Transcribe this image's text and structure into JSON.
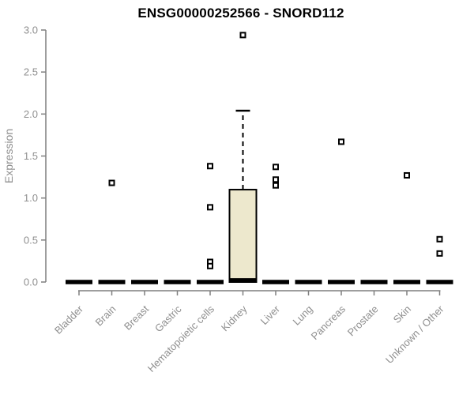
{
  "chart_data": {
    "type": "boxplot",
    "title": "ENSG00000252566 - SNORD112",
    "xlabel": "",
    "ylabel": "Expression",
    "ylim": [
      0.0,
      3.0
    ],
    "yticks": [
      "0.0",
      "0.5",
      "1.0",
      "1.5",
      "2.0",
      "2.5",
      "3.0"
    ],
    "grid": false,
    "legend": false,
    "x_tick_label_rotation_deg": 45,
    "categories": [
      "Bladder",
      "Brain",
      "Breast",
      "Gastric",
      "Hematopoietic cells",
      "Kidney",
      "Liver",
      "Lung",
      "Pancreas",
      "Prostate",
      "Skin",
      "Unknown / Other"
    ],
    "boxes": [
      {
        "category": "Bladder",
        "median": 0,
        "q1": null,
        "q3": null,
        "whisker_low": null,
        "whisker_high": null,
        "outliers": []
      },
      {
        "category": "Brain",
        "median": 0,
        "q1": null,
        "q3": null,
        "whisker_low": null,
        "whisker_high": null,
        "outliers": [
          1.18
        ]
      },
      {
        "category": "Breast",
        "median": 0,
        "q1": null,
        "q3": null,
        "whisker_low": null,
        "whisker_high": null,
        "outliers": []
      },
      {
        "category": "Gastric",
        "median": 0,
        "q1": null,
        "q3": null,
        "whisker_low": null,
        "whisker_high": null,
        "outliers": []
      },
      {
        "category": "Hematopoietic cells",
        "median": 0,
        "q1": null,
        "q3": null,
        "whisker_low": null,
        "whisker_high": null,
        "outliers": [
          1.38,
          0.89,
          0.24,
          0.19
        ]
      },
      {
        "category": "Kidney",
        "median": 0.02,
        "q1": 0,
        "q3": 1.1,
        "whisker_low": null,
        "whisker_high": 2.04,
        "outliers": [
          2.94
        ]
      },
      {
        "category": "Liver",
        "median": 0,
        "q1": null,
        "q3": null,
        "whisker_low": null,
        "whisker_high": null,
        "outliers": [
          1.37,
          1.22,
          1.15
        ]
      },
      {
        "category": "Lung",
        "median": 0,
        "q1": null,
        "q3": null,
        "whisker_low": null,
        "whisker_high": null,
        "outliers": []
      },
      {
        "category": "Pancreas",
        "median": 0,
        "q1": null,
        "q3": null,
        "whisker_low": null,
        "whisker_high": null,
        "outliers": [
          1.67
        ]
      },
      {
        "category": "Prostate",
        "median": 0,
        "q1": null,
        "q3": null,
        "whisker_low": null,
        "whisker_high": null,
        "outliers": []
      },
      {
        "category": "Skin",
        "median": 0,
        "q1": null,
        "q3": null,
        "whisker_low": null,
        "whisker_high": null,
        "outliers": [
          1.27
        ]
      },
      {
        "category": "Unknown / Other",
        "median": 0,
        "q1": null,
        "q3": null,
        "whisker_low": null,
        "whisker_high": null,
        "outliers": [
          0.51,
          0.34
        ]
      }
    ],
    "colors": {
      "box_fill": "#EDE8CD",
      "box_stroke": "#000000",
      "median_color": "#000000",
      "outlier_color": "#000000",
      "axis_line": "#7f7f7f",
      "axis_text": "#8f8f8f",
      "title_color": "#000000",
      "background": "#ffffff"
    }
  }
}
